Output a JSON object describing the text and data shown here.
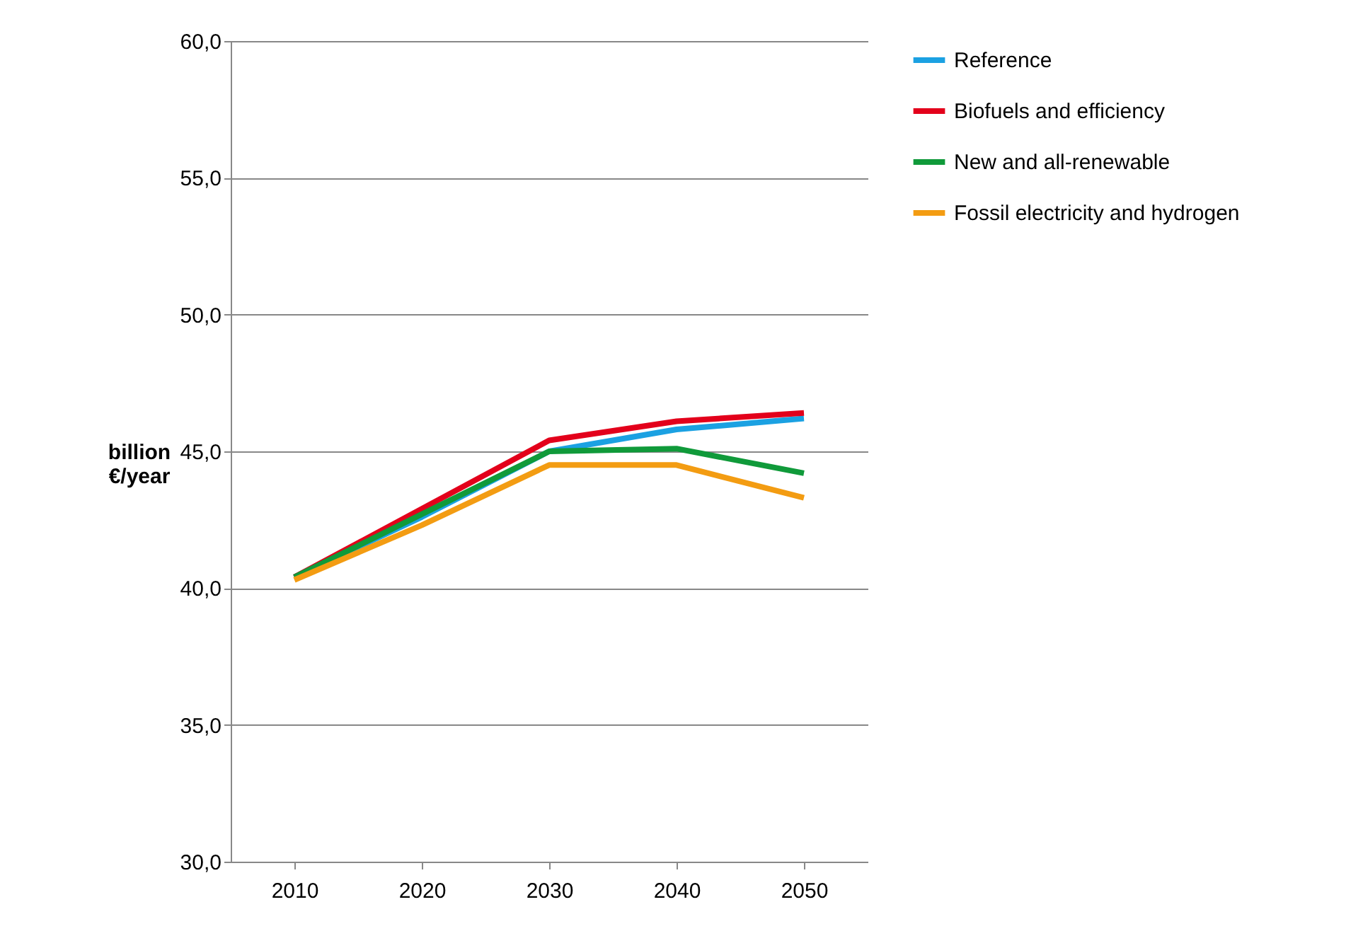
{
  "chart_data": {
    "type": "line",
    "ylabel": "billion €/year",
    "categories": [
      "2010",
      "2020",
      "2030",
      "2040",
      "2050"
    ],
    "series": [
      {
        "name": "Reference",
        "color": "#1ba1e2",
        "values": [
          40.4,
          42.6,
          45.0,
          45.8,
          46.2
        ]
      },
      {
        "name": "Biofuels and efficiency",
        "color": "#e3001b",
        "values": [
          40.4,
          42.9,
          45.4,
          46.1,
          46.4
        ]
      },
      {
        "name": "New and all-renewable",
        "color": "#109a3a",
        "values": [
          40.4,
          42.7,
          45.0,
          45.1,
          44.2
        ]
      },
      {
        "name": "Fossil electricity and hydrogen",
        "color": "#f39c12",
        "values": [
          40.3,
          42.3,
          44.5,
          44.5,
          43.3
        ]
      }
    ],
    "ylim": [
      30,
      60
    ],
    "yticks": [
      {
        "value": 30,
        "label": "30,0"
      },
      {
        "value": 35,
        "label": "35,0"
      },
      {
        "value": 40,
        "label": "40,0"
      },
      {
        "value": 45,
        "label": "45,0"
      },
      {
        "value": 50,
        "label": "50,0"
      },
      {
        "value": 55,
        "label": "55,0"
      },
      {
        "value": 60,
        "label": "60,0"
      }
    ],
    "grid": "y",
    "legend": "right",
    "marker": "none",
    "line_style": "solid"
  }
}
